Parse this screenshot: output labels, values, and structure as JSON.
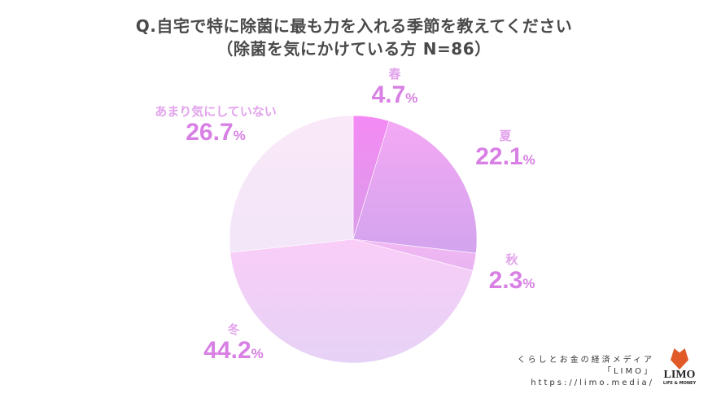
{
  "title": {
    "line1": "Q.自宅で特に除菌に最も力を入れる季節を教えてください",
    "line2": "（除菌を気にかけている方 N=86）"
  },
  "chart_data": {
    "type": "pie",
    "title": "Q.自宅で特に除菌に最も力を入れる季節を教えてください（除菌を気にかけている方 N=86）",
    "categories": [
      "春",
      "夏",
      "秋",
      "冬",
      "あまり気にしていない"
    ],
    "values": [
      4.7,
      22.1,
      2.3,
      44.2,
      26.7
    ],
    "unit": "%",
    "start_angle": "12 o'clock, clockwise",
    "colors": [
      "#ef8cf0",
      "#dfa6ee",
      "#efb9f2",
      "#f0cdf5",
      "#f7e6f9"
    ],
    "labels": [
      {
        "name": "春",
        "value": "4.7",
        "pct": "%"
      },
      {
        "name": "夏",
        "value": "22.1",
        "pct": "%"
      },
      {
        "name": "秋",
        "value": "2.3",
        "pct": "%"
      },
      {
        "name": "冬",
        "value": "44.2",
        "pct": "%"
      },
      {
        "name": "あまり気にしていない",
        "value": "26.7",
        "pct": "%"
      }
    ]
  },
  "footer": {
    "tagline": "くらしとお金の経済メディア",
    "brand": "「LIMO」",
    "url": "https://limo.media/",
    "logo_word": "LIMO",
    "logo_sub": "LIFE & MONEY"
  }
}
